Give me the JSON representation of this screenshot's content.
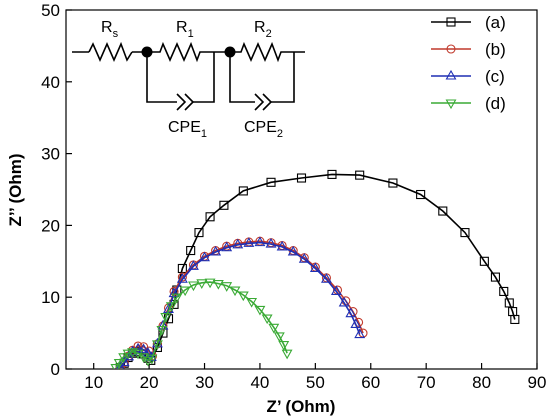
{
  "chart_data": {
    "type": "scatter",
    "xlabel": "Z’ (Ohm)",
    "ylabel": "Z’’ (Ohm)",
    "xlim": [
      5,
      90
    ],
    "ylim": [
      0,
      50
    ],
    "x_ticks": [
      10,
      20,
      30,
      40,
      50,
      60,
      70,
      80,
      90
    ],
    "y_ticks": [
      0,
      10,
      20,
      30,
      40,
      50
    ],
    "grid": false,
    "legend_position": "top-right",
    "series": [
      {
        "name": "(a)",
        "color": "#000000",
        "marker": "square",
        "points": [
          [
            14.8,
            0.2
          ],
          [
            15.5,
            0.8
          ],
          [
            16.2,
            1.6
          ],
          [
            17.0,
            2.2
          ],
          [
            18.0,
            2.4
          ],
          [
            19.0,
            2.1
          ],
          [
            19.8,
            1.5
          ],
          [
            20.3,
            1.2
          ],
          [
            21.5,
            3.0
          ],
          [
            22.5,
            5.0
          ],
          [
            23.5,
            7.0
          ],
          [
            24.5,
            9.0
          ],
          [
            25.0,
            11.0
          ],
          [
            26.0,
            14.0
          ],
          [
            27.5,
            16.5
          ],
          [
            29.0,
            19.0
          ],
          [
            31.0,
            21.2
          ],
          [
            33.5,
            22.8
          ],
          [
            37.0,
            24.8
          ],
          [
            42.0,
            26.0
          ],
          [
            47.5,
            26.6
          ],
          [
            53.0,
            27.1
          ],
          [
            58.0,
            27.0
          ],
          [
            64.0,
            25.9
          ],
          [
            69.0,
            24.3
          ],
          [
            73.0,
            22.0
          ],
          [
            77.0,
            19.0
          ],
          [
            80.5,
            15.0
          ],
          [
            82.5,
            12.8
          ],
          [
            84.0,
            10.8
          ],
          [
            85.0,
            9.2
          ],
          [
            85.6,
            8.0
          ],
          [
            86.0,
            6.9
          ]
        ]
      },
      {
        "name": "(b)",
        "color": "#c0392b",
        "marker": "circle",
        "points": [
          [
            14.8,
            0.2
          ],
          [
            15.5,
            0.9
          ],
          [
            16.3,
            1.8
          ],
          [
            17.0,
            2.6
          ],
          [
            18.0,
            3.2
          ],
          [
            19.0,
            3.1
          ],
          [
            20.0,
            2.5
          ],
          [
            20.6,
            1.8
          ],
          [
            21.5,
            3.5
          ],
          [
            22.5,
            6.0
          ],
          [
            23.5,
            8.5
          ],
          [
            24.5,
            10.8
          ],
          [
            26.0,
            12.8
          ],
          [
            28.0,
            14.5
          ],
          [
            30.0,
            15.7
          ],
          [
            32.0,
            16.5
          ],
          [
            34.0,
            17.1
          ],
          [
            36.0,
            17.5
          ],
          [
            38.0,
            17.7
          ],
          [
            40.0,
            17.8
          ],
          [
            42.0,
            17.6
          ],
          [
            44.0,
            17.2
          ],
          [
            46.0,
            16.5
          ],
          [
            48.0,
            15.5
          ],
          [
            50.0,
            14.2
          ],
          [
            52.0,
            12.7
          ],
          [
            54.0,
            11.0
          ],
          [
            55.5,
            9.5
          ],
          [
            56.8,
            8.0
          ],
          [
            57.8,
            6.5
          ],
          [
            58.6,
            5.0
          ]
        ]
      },
      {
        "name": "(c)",
        "color": "#1f2fb4",
        "marker": "triangle-up",
        "points": [
          [
            14.8,
            0.2
          ],
          [
            15.5,
            0.9
          ],
          [
            16.3,
            1.7
          ],
          [
            17.0,
            2.4
          ],
          [
            18.0,
            2.8
          ],
          [
            19.0,
            2.7
          ],
          [
            19.8,
            2.2
          ],
          [
            20.4,
            1.6
          ],
          [
            21.5,
            3.5
          ],
          [
            22.5,
            6.0
          ],
          [
            23.5,
            8.3
          ],
          [
            24.5,
            10.5
          ],
          [
            26.0,
            12.5
          ],
          [
            28.0,
            14.3
          ],
          [
            30.0,
            15.5
          ],
          [
            32.0,
            16.3
          ],
          [
            34.0,
            16.9
          ],
          [
            36.0,
            17.3
          ],
          [
            38.0,
            17.5
          ],
          [
            40.0,
            17.6
          ],
          [
            42.0,
            17.4
          ],
          [
            44.0,
            17.0
          ],
          [
            46.0,
            16.3
          ],
          [
            48.0,
            15.3
          ],
          [
            50.0,
            14.0
          ],
          [
            52.0,
            12.5
          ],
          [
            53.8,
            10.8
          ],
          [
            55.2,
            9.2
          ],
          [
            56.4,
            7.7
          ],
          [
            57.3,
            6.2
          ],
          [
            58.0,
            4.8
          ]
        ]
      },
      {
        "name": "(d)",
        "color": "#3aaa35",
        "marker": "triangle-down",
        "points": [
          [
            14.0,
            0.2
          ],
          [
            14.6,
            0.9
          ],
          [
            15.4,
            1.7
          ],
          [
            16.2,
            2.2
          ],
          [
            17.0,
            2.4
          ],
          [
            18.0,
            2.2
          ],
          [
            19.0,
            1.7
          ],
          [
            19.8,
            1.2
          ],
          [
            20.5,
            1.5
          ],
          [
            21.5,
            3.5
          ],
          [
            22.3,
            5.5
          ],
          [
            23.0,
            7.3
          ],
          [
            24.0,
            8.8
          ],
          [
            25.0,
            10.0
          ],
          [
            26.5,
            11.0
          ],
          [
            28.0,
            11.7
          ],
          [
            29.5,
            12.0
          ],
          [
            31.0,
            12.1
          ],
          [
            32.5,
            11.9
          ],
          [
            34.0,
            11.6
          ],
          [
            35.5,
            11.0
          ],
          [
            37.0,
            10.3
          ],
          [
            38.5,
            9.4
          ],
          [
            40.0,
            8.3
          ],
          [
            41.3,
            7.1
          ],
          [
            42.5,
            5.8
          ],
          [
            43.5,
            4.6
          ],
          [
            44.3,
            3.4
          ],
          [
            44.9,
            2.2
          ]
        ]
      }
    ],
    "inset": {
      "resistor_labels": [
        {
          "main": "R",
          "sub": "s"
        },
        {
          "main": "R",
          "sub": "1"
        },
        {
          "main": "R",
          "sub": "2"
        }
      ],
      "cpe_labels": [
        {
          "main": "CPE",
          "sub": "1"
        },
        {
          "main": "CPE",
          "sub": "2"
        }
      ]
    }
  }
}
